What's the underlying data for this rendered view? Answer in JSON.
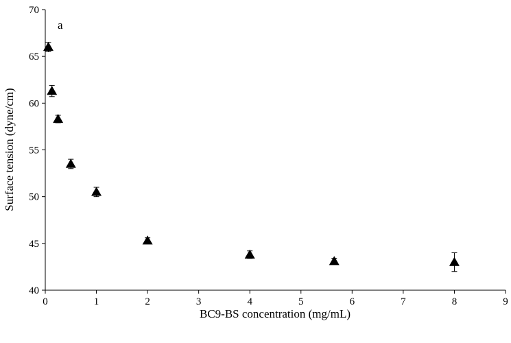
{
  "chart_data": {
    "type": "scatter",
    "xlabel": "BC9-BS concentration (mg/mL)",
    "ylabel": "Surface tension (dyne/cm)",
    "annotation": "a",
    "xlim": [
      0,
      9
    ],
    "ylim": [
      40,
      70
    ],
    "xticks": [
      0,
      1,
      2,
      3,
      4,
      5,
      6,
      7,
      8,
      9
    ],
    "yticks": [
      40,
      45,
      50,
      55,
      60,
      65,
      70
    ],
    "grid": false,
    "marker": "triangle",
    "marker_color": "#000000",
    "points": [
      {
        "x": 0.06,
        "y": 66.0,
        "err": 0.5
      },
      {
        "x": 0.13,
        "y": 61.3,
        "err": 0.6
      },
      {
        "x": 0.25,
        "y": 58.3,
        "err": 0.4
      },
      {
        "x": 0.5,
        "y": 53.5,
        "err": 0.5
      },
      {
        "x": 1.0,
        "y": 50.5,
        "err": 0.5
      },
      {
        "x": 2.0,
        "y": 45.3,
        "err": 0.3
      },
      {
        "x": 4.0,
        "y": 43.8,
        "err": 0.4
      },
      {
        "x": 5.65,
        "y": 43.1,
        "err": 0.3
      },
      {
        "x": 8.0,
        "y": 43.0,
        "err": 1.0
      }
    ]
  }
}
